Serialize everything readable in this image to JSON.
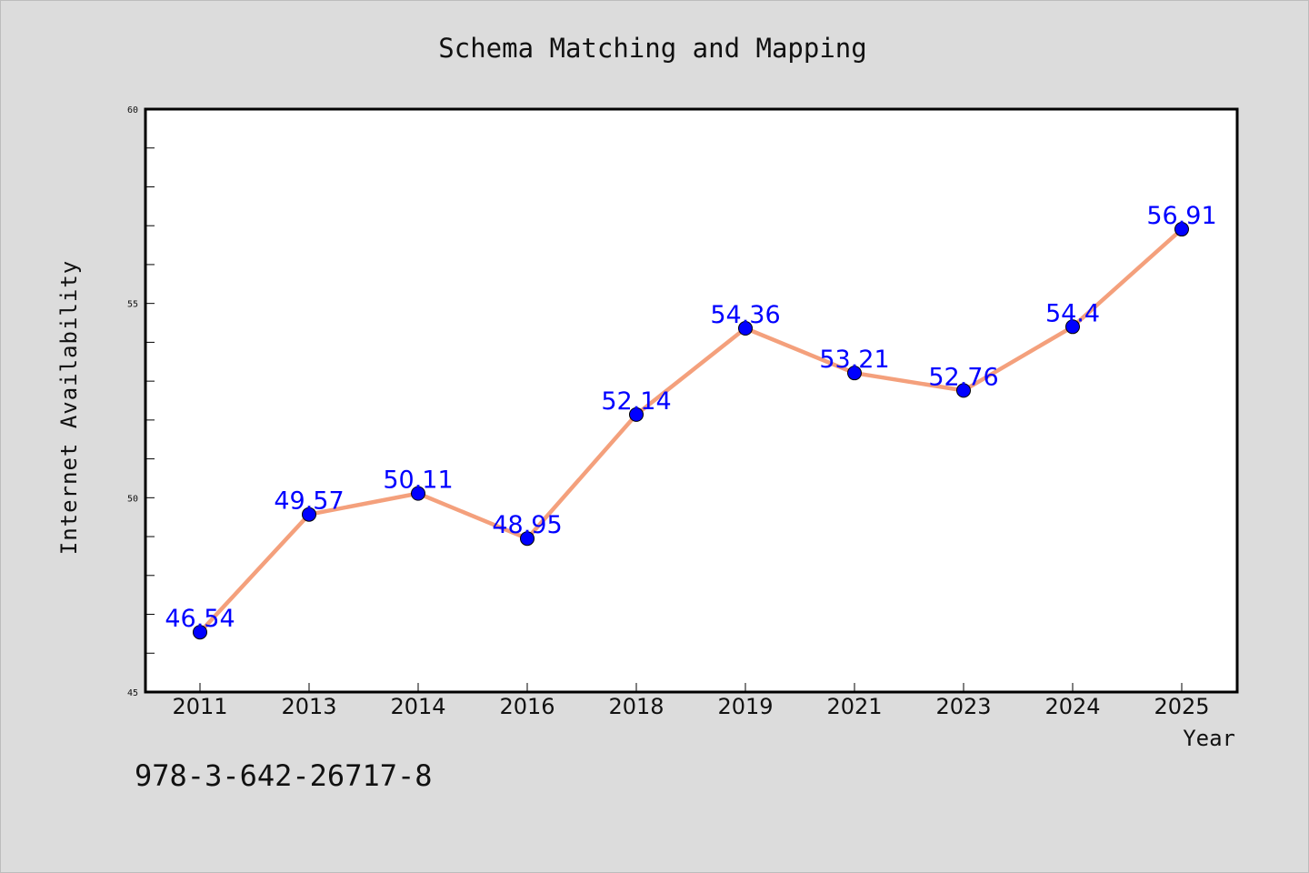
{
  "colors": {
    "background": "#dcdcdc",
    "plot_background": "#ffffff",
    "line": "#f4a07c",
    "marker": "#0000ff",
    "label": "#0000ff",
    "frame": "#000000"
  },
  "footer": {
    "isbn": "978-3-642-26717-8"
  },
  "chart_data": {
    "type": "line",
    "title": "Schema Matching and Mapping",
    "xlabel": "Year",
    "ylabel": "Internet Availability",
    "categories": [
      "2011",
      "2013",
      "2014",
      "2016",
      "2018",
      "2019",
      "2021",
      "2023",
      "2024",
      "2025"
    ],
    "series": [
      {
        "values": [
          46.54,
          49.57,
          50.11,
          48.95,
          52.14,
          54.36,
          53.21,
          52.76,
          54.4,
          56.91
        ],
        "labels": [
          "46.54",
          "49.57",
          "50.11",
          "48.95",
          "52.14",
          "54.36",
          "53.21",
          "52.76",
          "54.4",
          "56.91"
        ]
      }
    ],
    "ylim": [
      45,
      60
    ],
    "yticks": [
      "45",
      "50",
      "55",
      "60"
    ],
    "grid": false,
    "legend": false
  }
}
